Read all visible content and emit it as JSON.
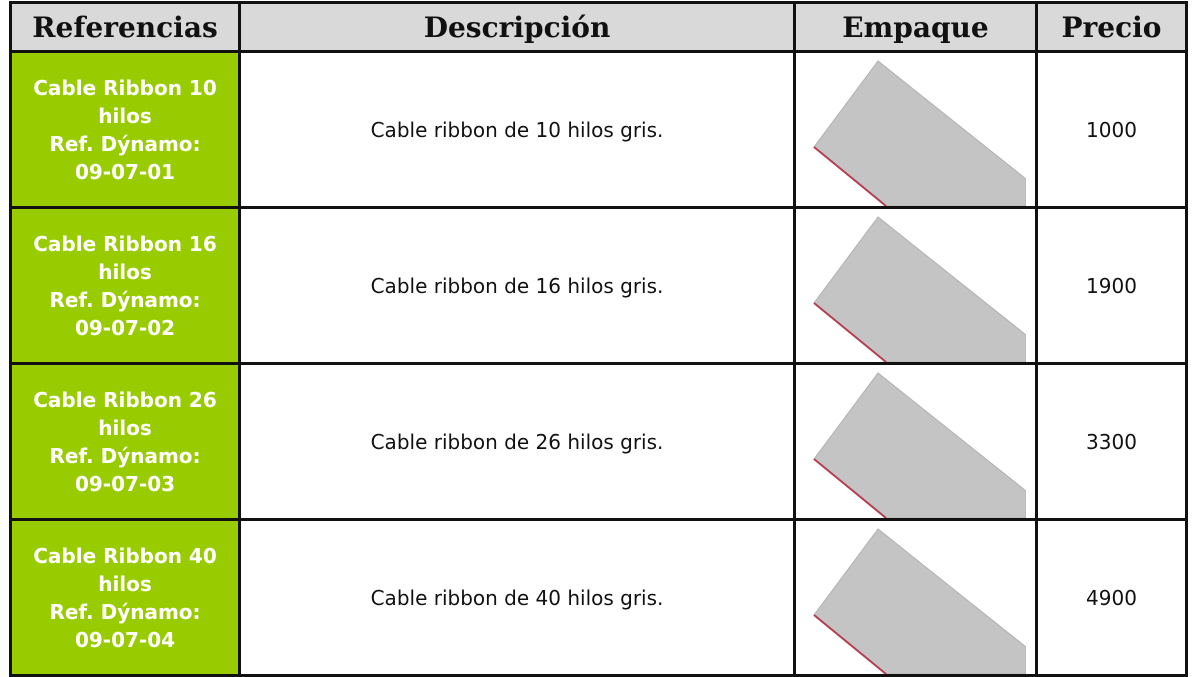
{
  "table": {
    "header": [
      "Referencias",
      "Descripción",
      "Empaque",
      "Precio"
    ],
    "rows": [
      {
        "reference": [
          "Cable Ribbon 10",
          "hilos",
          "Ref. Dýnamo:",
          "09-07-01"
        ],
        "description": "Cable ribbon de 10 hilos gris.",
        "price": 1000
      },
      {
        "reference": [
          "Cable Ribbon 16",
          "hilos",
          "Ref. Dýnamo:",
          "09-07-02"
        ],
        "description": "Cable ribbon de 16 hilos gris.",
        "price": 1900
      },
      {
        "reference": [
          "Cable Ribbon 26",
          "hilos",
          "Ref. Dýnamo:",
          "09-07-03"
        ],
        "description": "Cable ribbon de 26 hilos gris.",
        "price": 3300
      },
      {
        "reference": [
          "Cable Ribbon 40",
          "hilos",
          "Ref. Dýnamo:",
          "09-07-04"
        ],
        "description": "Cable ribbon de 40 hilos gris.",
        "price": 4900
      }
    ]
  }
}
